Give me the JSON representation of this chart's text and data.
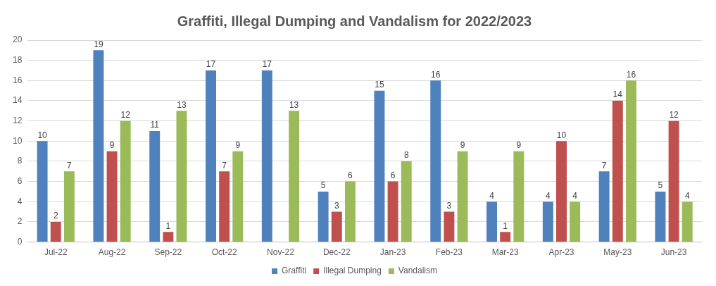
{
  "chart_data": {
    "type": "bar",
    "title": "Graffiti, Illegal Dumping and Vandalism for 2022/2023",
    "categories": [
      "Jul-22",
      "Aug-22",
      "Sep-22",
      "Oct-22",
      "Nov-22",
      "Dec-22",
      "Jan-23",
      "Feb-23",
      "Mar-23",
      "Apr-23",
      "May-23",
      "Jun-23"
    ],
    "series": [
      {
        "name": "Graffiti",
        "color": "#4f81bd",
        "values": [
          10,
          19,
          11,
          17,
          17,
          5,
          15,
          16,
          4,
          4,
          7,
          5
        ]
      },
      {
        "name": "Illegal Dumping",
        "color": "#c0504d",
        "values": [
          2,
          9,
          1,
          7,
          null,
          3,
          6,
          3,
          1,
          10,
          14,
          12
        ]
      },
      {
        "name": "Vandalism",
        "color": "#9bbb59",
        "values": [
          7,
          12,
          13,
          9,
          13,
          6,
          8,
          9,
          9,
          4,
          16,
          4
        ]
      }
    ],
    "ylim": [
      0,
      20
    ],
    "yticks": [
      0,
      2,
      4,
      6,
      8,
      10,
      12,
      14,
      16,
      18,
      20
    ],
    "grid": "y",
    "legend": "bottom",
    "data_labels": true
  }
}
